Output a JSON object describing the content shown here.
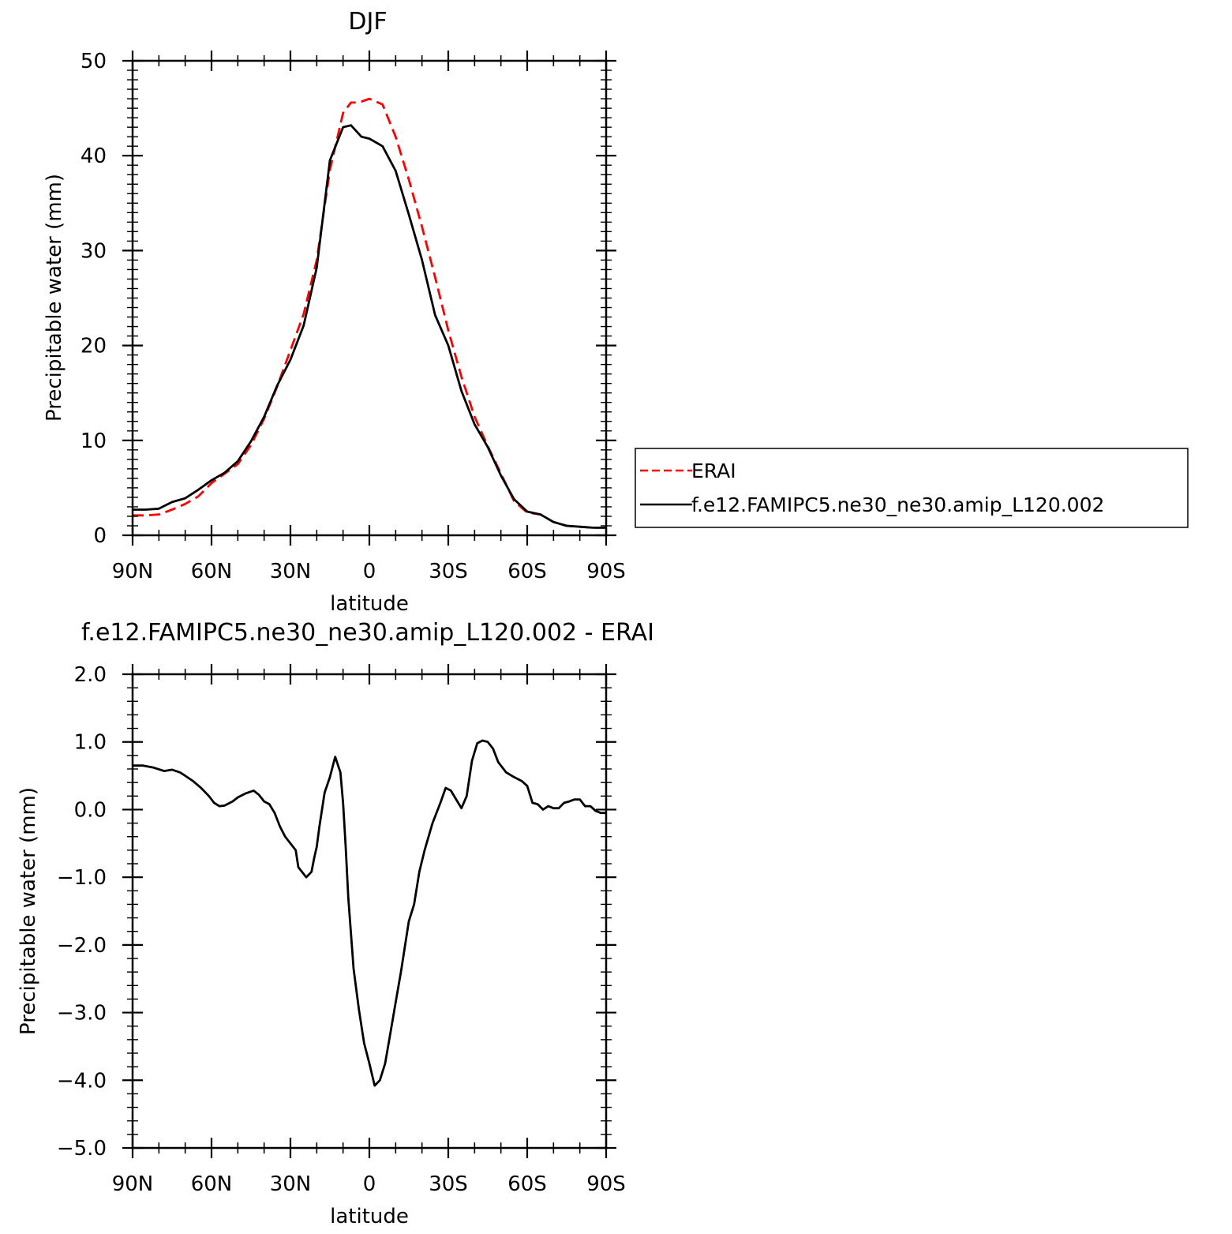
{
  "chart_data": [
    {
      "type": "line",
      "title": "DJF",
      "xlabel": "latitude",
      "ylabel": "Precipitable water (mm)",
      "xlim": [
        90,
        -90
      ],
      "ylim": [
        0,
        50
      ],
      "x_ticks": [
        90,
        60,
        30,
        0,
        -30,
        -60,
        -90
      ],
      "x_tick_labels": [
        "90N",
        "60N",
        "30N",
        "0",
        "30S",
        "60S",
        "90S"
      ],
      "y_ticks": [
        0,
        10,
        20,
        30,
        40,
        50
      ],
      "y_tick_labels": [
        "0",
        "10",
        "20",
        "30",
        "40",
        "50"
      ],
      "legend_position": "right",
      "series": [
        {
          "name": "ERAI",
          "color": "#ff0000",
          "style": "dashed",
          "x": [
            90,
            85,
            80,
            75,
            70,
            65,
            60,
            55,
            50,
            45,
            40,
            35,
            30,
            25,
            20,
            15,
            10,
            7,
            5,
            3,
            0,
            -5,
            -10,
            -15,
            -20,
            -25,
            -30,
            -35,
            -40,
            -45,
            -50,
            -55,
            -60,
            -65,
            -70,
            -75,
            -80,
            -85,
            -88,
            -90
          ],
          "y": [
            2.1,
            2.1,
            2.2,
            2.7,
            3.3,
            4.1,
            5.5,
            6.5,
            7.5,
            9.5,
            12.3,
            15.7,
            19.5,
            23.3,
            29.0,
            38.5,
            44.5,
            45.6,
            45.6,
            45.7,
            46.0,
            45.4,
            42.0,
            37.5,
            32.5,
            27.2,
            21.6,
            16.7,
            12.5,
            9.4,
            6.5,
            3.6,
            2.4,
            2.2,
            1.4,
            1.0,
            0.9,
            0.8,
            0.8,
            0.8
          ]
        },
        {
          "name": "f.e12.FAMIPC5.ne30_ne30.amip_L120.002",
          "color": "#000000",
          "style": "solid",
          "x": [
            90,
            85,
            80,
            75,
            70,
            65,
            60,
            55,
            50,
            45,
            40,
            35,
            30,
            25,
            20,
            15,
            10,
            7,
            5,
            3,
            0,
            -5,
            -10,
            -15,
            -20,
            -25,
            -30,
            -35,
            -40,
            -45,
            -50,
            -55,
            -60,
            -65,
            -70,
            -75,
            -80,
            -85,
            -88,
            -90
          ],
          "y": [
            2.7,
            2.7,
            2.8,
            3.5,
            3.9,
            4.8,
            5.8,
            6.6,
            7.8,
            9.9,
            12.5,
            15.8,
            18.5,
            22.1,
            28.2,
            39.5,
            43.0,
            43.2,
            42.6,
            42.0,
            41.8,
            41.0,
            38.4,
            33.8,
            29.0,
            23.2,
            20.0,
            15.2,
            11.7,
            9.3,
            6.3,
            3.8,
            2.5,
            2.2,
            1.4,
            1.0,
            0.9,
            0.8,
            0.8,
            0.8
          ]
        }
      ]
    },
    {
      "type": "line",
      "title": "f.e12.FAMIPC5.ne30_ne30.amip_L120.002 - ERAI",
      "xlabel": "latitude",
      "ylabel": "Precipitable water (mm)",
      "xlim": [
        90,
        -90
      ],
      "ylim": [
        -5.0,
        2.0
      ],
      "x_ticks": [
        90,
        60,
        30,
        0,
        -30,
        -60,
        -90
      ],
      "x_tick_labels": [
        "90N",
        "60N",
        "30N",
        "0",
        "30S",
        "60S",
        "90S"
      ],
      "y_ticks": [
        2.0,
        1.0,
        0.0,
        -1.0,
        -2.0,
        -3.0,
        -4.0,
        -5.0
      ],
      "y_tick_labels": [
        "2.0",
        "1.0",
        "0.0",
        "−1.0",
        "−2.0",
        "−3.0",
        "−4.0",
        "−5.0"
      ],
      "series": [
        {
          "color": "#000000",
          "style": "solid",
          "x": [
            90,
            86,
            82,
            78,
            75,
            72,
            70,
            67,
            64,
            61,
            59,
            57,
            55,
            52,
            50,
            47,
            44,
            42,
            40,
            38,
            36,
            34,
            32,
            30,
            28,
            27,
            26,
            24,
            22,
            21,
            20,
            19,
            17,
            15,
            13,
            11,
            10,
            9,
            8,
            6,
            4,
            2,
            0,
            -2,
            -4,
            -6,
            -8,
            -10,
            -12,
            -15,
            -17,
            -19,
            -21,
            -24,
            -27,
            -29,
            -31,
            -33,
            -35,
            -37,
            -39,
            -41,
            -43,
            -45,
            -47,
            -49,
            -52,
            -55,
            -58,
            -60,
            -62,
            -64,
            -66,
            -68,
            -70,
            -72,
            -74,
            -76,
            -78,
            -80,
            -82,
            -84,
            -86,
            -88,
            -90
          ],
          "y": [
            0.65,
            0.65,
            0.62,
            0.57,
            0.59,
            0.55,
            0.5,
            0.42,
            0.32,
            0.2,
            0.1,
            0.05,
            0.06,
            0.12,
            0.18,
            0.24,
            0.28,
            0.22,
            0.12,
            0.08,
            -0.05,
            -0.25,
            -0.4,
            -0.5,
            -0.6,
            -0.85,
            -0.9,
            -1.0,
            -0.92,
            -0.72,
            -0.55,
            -0.25,
            0.25,
            0.48,
            0.78,
            0.55,
            0.1,
            -0.55,
            -1.3,
            -2.35,
            -2.95,
            -3.45,
            -3.75,
            -4.08,
            -4.0,
            -3.75,
            -3.3,
            -2.85,
            -2.4,
            -1.65,
            -1.4,
            -0.92,
            -0.6,
            -0.2,
            0.1,
            0.32,
            0.28,
            0.15,
            0.02,
            0.2,
            0.72,
            0.98,
            1.02,
            1.0,
            0.9,
            0.7,
            0.55,
            0.48,
            0.42,
            0.35,
            0.1,
            0.08,
            0.0,
            0.05,
            0.02,
            0.02,
            0.1,
            0.12,
            0.15,
            0.15,
            0.05,
            0.05,
            -0.02,
            -0.05,
            -0.05
          ]
        }
      ]
    }
  ]
}
